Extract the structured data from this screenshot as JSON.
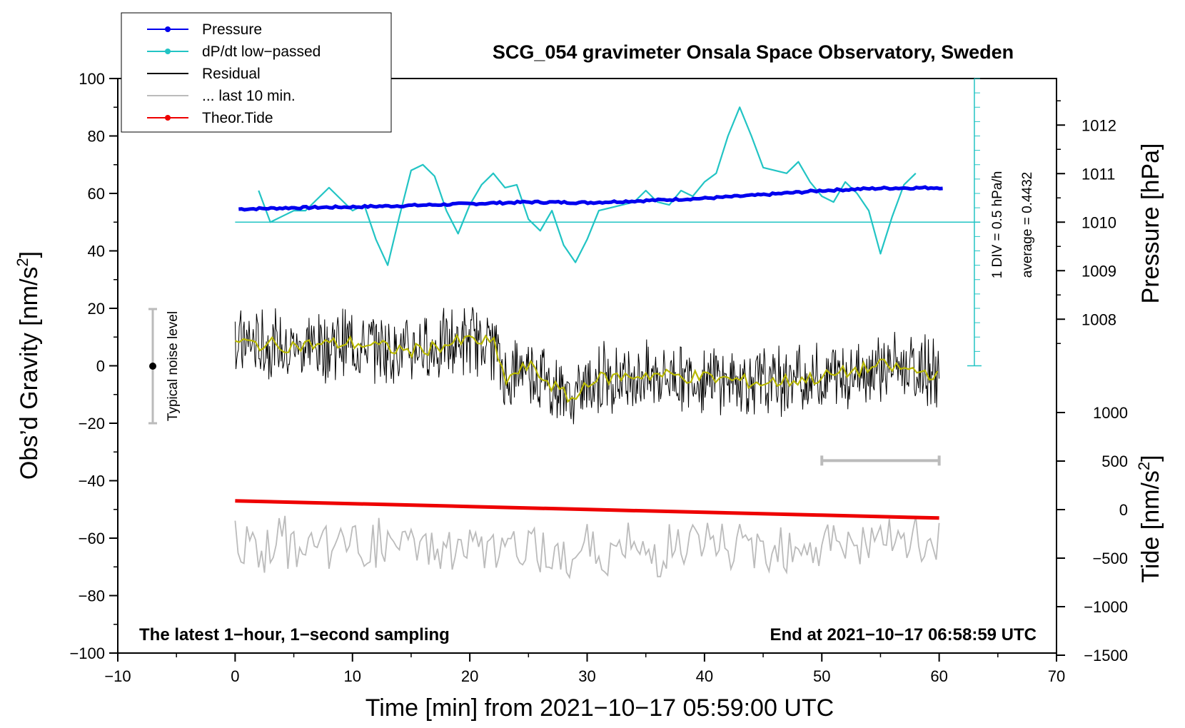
{
  "chart_data": {
    "type": "line",
    "title": "SCG_054 gravimeter Onsala Space Observatory, Sweden",
    "xlabel": "Time [min] from 2021−10−17 05:59:00 UTC",
    "ylabel_main": "Obs’d Gravity [nm/s",
    "ylabel_sup": "2",
    "ylabel_close": "]",
    "xlim": [
      -10,
      70
    ],
    "ylim": [
      -100,
      100
    ],
    "xticks": [
      "−10",
      "0",
      "10",
      "20",
      "30",
      "40",
      "50",
      "60",
      "70"
    ],
    "yticks": [
      "−100",
      "−80",
      "−60",
      "−40",
      "−20",
      "0",
      "20",
      "40",
      "60",
      "80",
      "100"
    ],
    "pressure_axis": {
      "label": "Pressure [hPa]",
      "ticks": [
        {
          "value": 1008,
          "label": "1008"
        },
        {
          "value": 1009,
          "label": "1009"
        },
        {
          "value": 1010,
          "label": "1010"
        },
        {
          "value": 1011,
          "label": "1011"
        },
        {
          "value": 1012,
          "label": "1012"
        }
      ]
    },
    "tide_axis": {
      "label_main": "Tide [nm/s",
      "label_sup": "2",
      "label_close": "]",
      "ticks": [
        {
          "value": 1000,
          "label": "1000"
        },
        {
          "value": 500,
          "label": "500"
        },
        {
          "value": 0,
          "label": "0"
        },
        {
          "value": -500,
          "label": "−500"
        },
        {
          "value": -1000,
          "label": "−1000"
        },
        {
          "value": -1500,
          "label": "−1500"
        }
      ]
    },
    "series": [
      {
        "name": "Pressure",
        "color": "#0000ee",
        "x": [
          0,
          5,
          10,
          15,
          20,
          25,
          30,
          35,
          40,
          45,
          50,
          55,
          60
        ],
        "y": [
          54.5,
          55,
          55.3,
          55.8,
          56.4,
          57,
          56.8,
          57.5,
          58.3,
          59.5,
          61,
          61.8,
          62
        ]
      },
      {
        "name": "dP/dt low−passed",
        "color": "#22c4c4",
        "x": [
          2,
          3,
          4,
          5,
          6,
          7,
          8,
          9,
          10,
          11,
          12,
          13,
          14,
          15,
          16,
          17,
          18,
          19,
          20,
          21,
          22,
          23,
          24,
          25,
          26,
          27,
          28,
          29,
          30,
          31,
          32,
          33,
          34,
          35,
          36,
          37,
          38,
          39,
          40,
          41,
          42,
          43,
          44,
          45,
          46,
          47,
          48,
          49,
          50,
          51,
          52,
          53,
          54,
          55,
          56,
          57,
          58
        ],
        "y": [
          61,
          50,
          52,
          54,
          54,
          58,
          62,
          58,
          54,
          56,
          44,
          35,
          52,
          68,
          70,
          66,
          54,
          46,
          56,
          63,
          67,
          62,
          63,
          51,
          47,
          54,
          42,
          36,
          44,
          54,
          55,
          56,
          57,
          61,
          57,
          56,
          61,
          59,
          64,
          67,
          80,
          90,
          80,
          69,
          68,
          67,
          71,
          64,
          59,
          57,
          64,
          60,
          54,
          39,
          52,
          63,
          67
        ]
      },
      {
        "name": "Residual",
        "color": "#000000",
        "x": [
          0,
          5,
          10,
          15,
          20,
          22,
          23,
          25,
          28,
          29,
          30,
          35,
          40,
          45,
          50,
          55,
          60
        ],
        "y": [
          8,
          7,
          8,
          5,
          9,
          8,
          -5,
          0,
          -10,
          -12,
          -5,
          -3,
          -4,
          -6,
          -4,
          0,
          -3
        ]
      },
      {
        "name": "... last 10 min.",
        "color": "#bbbbbb",
        "x": [
          0,
          10,
          20,
          30,
          40,
          50,
          60
        ],
        "y": [
          -63,
          -62,
          -64,
          -65,
          -63,
          -62,
          -62
        ]
      },
      {
        "name": "Theor.Tide",
        "color": "#ee0000",
        "x": [
          0,
          10,
          20,
          30,
          40,
          50,
          60
        ],
        "y": [
          -47,
          -48,
          -49,
          -50,
          -51,
          -52,
          -53
        ]
      }
    ],
    "legend": {
      "placement": "top-left",
      "entries": [
        {
          "label": "Pressure",
          "color": "#0000ee",
          "marker": true
        },
        {
          "label": "dP/dt low−passed",
          "color": "#22c4c4",
          "marker": true
        },
        {
          "label": "Residual",
          "color": "#000000",
          "marker": false
        },
        {
          "label": "... last 10 min.",
          "color": "#bbbbbb",
          "marker": false
        },
        {
          "label": "Theor.Tide",
          "color": "#ee0000",
          "marker": true
        }
      ]
    },
    "annotations": {
      "noise_label": "Typical noise level",
      "noise_range": [
        -20,
        20
      ],
      "scale_div": "1 DIV = 0.5 hPa/h",
      "scale_avg": "average = 0.4432",
      "bottom_left": "The latest 1−hour, 1−second sampling",
      "bottom_right": "End at 2021−10−17 06:58:59 UTC",
      "ten_min_bar": [
        50,
        60
      ]
    }
  }
}
